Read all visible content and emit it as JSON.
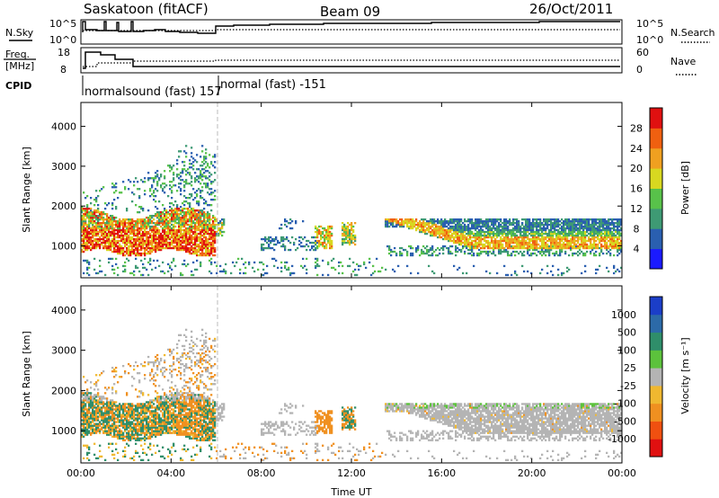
{
  "header": {
    "station": "Saskatoon (fitACF)",
    "beam": "Beam 09",
    "date": "26/Oct/2011"
  },
  "top_panels": {
    "nsky_label": "N.Sky",
    "nsky_ticks": [
      "10^5",
      "10^0"
    ],
    "nsearch_label": "N.Search",
    "nsearch_ticks": [
      "10^5",
      "10^0"
    ],
    "freq_label_1": "Freq.",
    "freq_label_2": "[MHz]",
    "freq_ticks": [
      "18",
      "8"
    ],
    "nave_label": "Nave",
    "nave_ticks": [
      "60",
      "0"
    ],
    "cpid_label": "CPID",
    "cpid_segments": [
      "normalsound (fast) 157",
      "normal (fast) -151"
    ]
  },
  "x_axis": {
    "label": "Time UT",
    "ticks": [
      "00:00",
      "04:00",
      "08:00",
      "12:00",
      "16:00",
      "20:00",
      "00:00"
    ]
  },
  "chart_data": [
    {
      "type": "heatmap",
      "name": "power",
      "ylabel": "Slant Range [km]",
      "yticks": [
        "1000",
        "2000",
        "3000",
        "4000"
      ],
      "ylim": [
        200,
        4600
      ],
      "xlim_hours": [
        0,
        24
      ],
      "colorbar_label": "Power [dB]",
      "colorbar_ticks": [
        "4",
        "8",
        "12",
        "16",
        "20",
        "24",
        "28"
      ],
      "colorbar_colors": [
        "#1a1aff",
        "#2a5fb0",
        "#3e9a74",
        "#58c24a",
        "#d8d820",
        "#f0a020",
        "#f06010",
        "#e01010"
      ]
    },
    {
      "type": "heatmap",
      "name": "velocity",
      "ylabel": "Slant Range [km]",
      "yticks": [
        "1000",
        "2000",
        "3000",
        "4000"
      ],
      "ylim": [
        200,
        4600
      ],
      "xlim_hours": [
        0,
        24
      ],
      "colorbar_label": "Velocity [m s⁻¹]",
      "colorbar_ticks": [
        "1000",
        "500",
        "100",
        "25",
        "-25",
        "-100",
        "-500",
        "-1000"
      ],
      "colorbar_colors": [
        "#1b3ec8",
        "#2c6aa8",
        "#2f8e6a",
        "#5cc23c",
        "#b4b4b4",
        "#f0b830",
        "#f09020",
        "#f05010",
        "#e01010"
      ]
    }
  ],
  "colors": {
    "frame": "#000000",
    "mode_divider": "#bbbbbb"
  }
}
